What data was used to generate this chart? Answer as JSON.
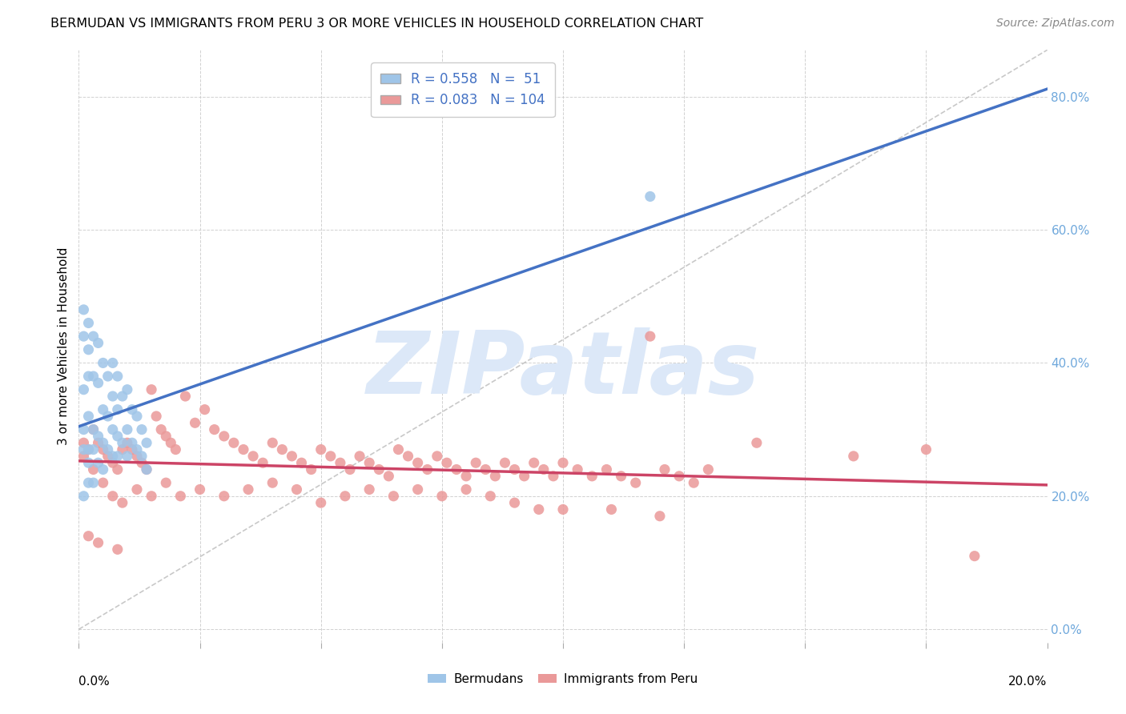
{
  "title": "BERMUDAN VS IMMIGRANTS FROM PERU 3 OR MORE VEHICLES IN HOUSEHOLD CORRELATION CHART",
  "source": "Source: ZipAtlas.com",
  "ylabel": "3 or more Vehicles in Household",
  "xmin": 0.0,
  "xmax": 0.2,
  "ymin": -0.02,
  "ymax": 0.87,
  "r_bermuda": 0.558,
  "n_bermuda": 51,
  "r_peru": 0.083,
  "n_peru": 104,
  "color_bermuda": "#9fc5e8",
  "color_peru": "#ea9999",
  "color_bermuda_line": "#4472c4",
  "color_peru_line": "#cc4466",
  "ref_line_color": "#bbbbbb",
  "legend_color": "#4472c4",
  "background_color": "#ffffff",
  "grid_color": "#cccccc",
  "watermark_color": "#dce8f8",
  "right_tick_color": "#6fa8dc",
  "bermuda_x": [
    0.001,
    0.001,
    0.001,
    0.001,
    0.001,
    0.001,
    0.002,
    0.002,
    0.002,
    0.002,
    0.002,
    0.002,
    0.002,
    0.003,
    0.003,
    0.003,
    0.003,
    0.003,
    0.004,
    0.004,
    0.004,
    0.004,
    0.005,
    0.005,
    0.005,
    0.005,
    0.006,
    0.006,
    0.006,
    0.007,
    0.007,
    0.007,
    0.007,
    0.008,
    0.008,
    0.008,
    0.008,
    0.009,
    0.009,
    0.01,
    0.01,
    0.01,
    0.011,
    0.011,
    0.012,
    0.012,
    0.013,
    0.013,
    0.014,
    0.014,
    0.118
  ],
  "bermuda_y": [
    0.48,
    0.44,
    0.36,
    0.3,
    0.27,
    0.2,
    0.46,
    0.42,
    0.38,
    0.32,
    0.27,
    0.25,
    0.22,
    0.44,
    0.38,
    0.3,
    0.27,
    0.22,
    0.43,
    0.37,
    0.29,
    0.25,
    0.4,
    0.33,
    0.28,
    0.24,
    0.38,
    0.32,
    0.27,
    0.4,
    0.35,
    0.3,
    0.26,
    0.38,
    0.33,
    0.29,
    0.26,
    0.35,
    0.28,
    0.36,
    0.3,
    0.26,
    0.33,
    0.28,
    0.32,
    0.27,
    0.3,
    0.26,
    0.28,
    0.24,
    0.65
  ],
  "peru_x": [
    0.001,
    0.002,
    0.003,
    0.004,
    0.005,
    0.006,
    0.007,
    0.008,
    0.009,
    0.01,
    0.011,
    0.012,
    0.013,
    0.014,
    0.015,
    0.016,
    0.017,
    0.018,
    0.019,
    0.02,
    0.022,
    0.024,
    0.026,
    0.028,
    0.03,
    0.032,
    0.034,
    0.036,
    0.038,
    0.04,
    0.042,
    0.044,
    0.046,
    0.048,
    0.05,
    0.052,
    0.054,
    0.056,
    0.058,
    0.06,
    0.062,
    0.064,
    0.066,
    0.068,
    0.07,
    0.072,
    0.074,
    0.076,
    0.078,
    0.08,
    0.082,
    0.084,
    0.086,
    0.088,
    0.09,
    0.092,
    0.094,
    0.096,
    0.098,
    0.1,
    0.103,
    0.106,
    0.109,
    0.112,
    0.115,
    0.118,
    0.121,
    0.124,
    0.127,
    0.13,
    0.001,
    0.003,
    0.005,
    0.007,
    0.009,
    0.012,
    0.015,
    0.018,
    0.021,
    0.025,
    0.03,
    0.035,
    0.04,
    0.045,
    0.05,
    0.055,
    0.06,
    0.065,
    0.07,
    0.075,
    0.08,
    0.085,
    0.09,
    0.095,
    0.1,
    0.11,
    0.12,
    0.14,
    0.16,
    0.175,
    0.002,
    0.004,
    0.008,
    0.185
  ],
  "peru_y": [
    0.28,
    0.27,
    0.3,
    0.28,
    0.27,
    0.26,
    0.25,
    0.24,
    0.27,
    0.28,
    0.27,
    0.26,
    0.25,
    0.24,
    0.36,
    0.32,
    0.3,
    0.29,
    0.28,
    0.27,
    0.35,
    0.31,
    0.33,
    0.3,
    0.29,
    0.28,
    0.27,
    0.26,
    0.25,
    0.28,
    0.27,
    0.26,
    0.25,
    0.24,
    0.27,
    0.26,
    0.25,
    0.24,
    0.26,
    0.25,
    0.24,
    0.23,
    0.27,
    0.26,
    0.25,
    0.24,
    0.26,
    0.25,
    0.24,
    0.23,
    0.25,
    0.24,
    0.23,
    0.25,
    0.24,
    0.23,
    0.25,
    0.24,
    0.23,
    0.25,
    0.24,
    0.23,
    0.24,
    0.23,
    0.22,
    0.44,
    0.24,
    0.23,
    0.22,
    0.24,
    0.26,
    0.24,
    0.22,
    0.2,
    0.19,
    0.21,
    0.2,
    0.22,
    0.2,
    0.21,
    0.2,
    0.21,
    0.22,
    0.21,
    0.19,
    0.2,
    0.21,
    0.2,
    0.21,
    0.2,
    0.21,
    0.2,
    0.19,
    0.18,
    0.18,
    0.18,
    0.17,
    0.28,
    0.26,
    0.27,
    0.14,
    0.13,
    0.12,
    0.11
  ]
}
